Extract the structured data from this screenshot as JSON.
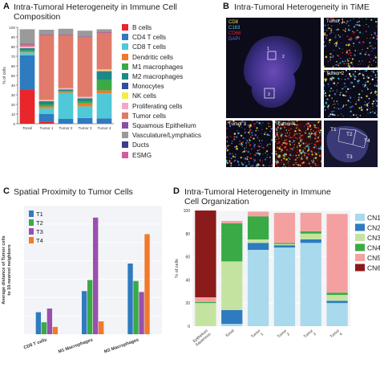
{
  "panels": {
    "a": {
      "letter": "A",
      "title_line1": "Intra-Tumoral Heterogeneity in Immune Cell",
      "title_line2": "Composition"
    },
    "b": {
      "letter": "B",
      "title": "Intra-Tumoral Heterogeneity in TiME"
    },
    "c": {
      "letter": "C",
      "title": "Spatial Proximity to Tumor Cells"
    },
    "d": {
      "letter": "D",
      "title_line1": "Intra-Tumoral Heterogeneity in Immune",
      "title_line2": "Cell Organization"
    }
  },
  "colors": {
    "B cells": "#e8262b",
    "CD4 T cells": "#2f7bbf",
    "CD8 T cells": "#4fc8d8",
    "Dendritic cells": "#f07a2c",
    "M1 macrophages": "#3aaa45",
    "M2 macrophages": "#1a8a86",
    "Monocytes": "#2f4e9e",
    "NK cells": "#f3ec4a",
    "Proliferating cells": "#f5a6c9",
    "Tumor cells": "#e07a6a",
    "Squamous Epithelium": "#8a4ea3",
    "Vasculature/Lymphatics": "#9a9a9a",
    "Ducts": "#3d3d8f",
    "ESMG": "#d45ba0",
    "T1": "#2f7bbf",
    "T2": "#3aaa45",
    "T3": "#9b4fb0",
    "T4": "#f07a2c",
    "CN1": "#a9d9ec",
    "CN2": "#2f7bbf",
    "CN3": "#c4e3a0",
    "CN4": "#3aaa45",
    "CN5": "#f5a0a0",
    "CN6": "#8b1a1a"
  },
  "panel_b": {
    "main_legend": [
      {
        "label": "CD8",
        "color": "#f3e04a"
      },
      {
        "label": "C163",
        "color": "#49c6e0"
      },
      {
        "label": "CD68",
        "color": "#e8262b"
      },
      {
        "label": "DAPI",
        "color": "#5a6fd8"
      }
    ],
    "insets": [
      "Tumor 1",
      "Tumor 2",
      "Tumor 3",
      "Tumor 4"
    ],
    "tumor_map_labels": [
      "T1",
      "T2",
      "T3",
      "T4"
    ],
    "region_numbers": [
      "1",
      "2",
      "3"
    ]
  },
  "chart_data": [
    {
      "id": "a",
      "type": "bar",
      "stacked": true,
      "title": "Intra-Tumoral Heterogeneity in Immune Cell Composition",
      "ylabel": "% of cells",
      "ylim": [
        0,
        100
      ],
      "yticks": [
        0,
        10,
        20,
        30,
        40,
        50,
        60,
        70,
        80,
        90,
        100
      ],
      "categories": [
        "Tonsil",
        "Tumor 1",
        "Tumor 2",
        "Tumor 3",
        "Tumor 4"
      ],
      "legend_placement": "right",
      "series": [
        {
          "name": "B cells",
          "values": [
            35,
            2,
            0,
            0,
            0.5
          ]
        },
        {
          "name": "CD4 T cells",
          "values": [
            36,
            8,
            5,
            6,
            5
          ]
        },
        {
          "name": "CD8 T cells",
          "values": [
            3,
            6,
            27,
            12,
            26
          ]
        },
        {
          "name": "Dendritic cells",
          "values": [
            1,
            2,
            1,
            3,
            3
          ]
        },
        {
          "name": "M1 macrophages",
          "values": [
            1,
            2,
            1,
            2,
            11
          ]
        },
        {
          "name": "M2 macrophages",
          "values": [
            2,
            3,
            1,
            3,
            8
          ]
        },
        {
          "name": "Monocytes",
          "values": [
            0.5,
            0.5,
            0.5,
            0.5,
            1
          ]
        },
        {
          "name": "NK cells",
          "values": [
            0.5,
            0.5,
            0.5,
            0.5,
            1
          ]
        },
        {
          "name": "Proliferating cells",
          "values": [
            1,
            1,
            1,
            1,
            1
          ]
        },
        {
          "name": "Tumor cells",
          "values": [
            2,
            67,
            55,
            62,
            38
          ]
        },
        {
          "name": "Squamous Epithelium",
          "values": [
            1,
            0.5,
            0.5,
            0.5,
            0.5
          ]
        },
        {
          "name": "Vasculature/Lymphatics",
          "values": [
            15,
            5,
            6,
            6,
            3
          ]
        },
        {
          "name": "Ducts",
          "values": [
            0,
            0,
            0,
            0,
            0
          ]
        },
        {
          "name": "ESMG",
          "values": [
            0,
            0,
            0,
            0,
            0
          ]
        }
      ]
    },
    {
      "id": "c",
      "type": "bar",
      "title": "Spatial Proximity to Tumor Cells",
      "ylabel_line1": "Average distance of Tumor cells",
      "ylabel_line2": "to 10-nearest neighbors",
      "ylim": [
        0,
        700
      ],
      "categories": [
        "CD8 T cells",
        "M1 Macrophages",
        "M2 Macrophages"
      ],
      "legend_placement": "top-left",
      "series": [
        {
          "name": "T1",
          "values": [
            120,
            235,
            385
          ]
        },
        {
          "name": "T2",
          "values": [
            65,
            295,
            290
          ]
        },
        {
          "name": "T3",
          "values": [
            140,
            635,
            230
          ]
        },
        {
          "name": "T4",
          "values": [
            40,
            70,
            545
          ]
        }
      ]
    },
    {
      "id": "d",
      "type": "bar",
      "stacked": true,
      "title": "Intra-Tumoral Heterogeneity in Immune Cell Organization",
      "ylabel": "% of cells",
      "ylim": [
        0,
        100
      ],
      "yticks": [
        0,
        20,
        40,
        60,
        80,
        100
      ],
      "categories": [
        "Epithelium Squamous",
        "Tonsil",
        "Tumor 1",
        "Tumor 2",
        "Tumor 3",
        "Tumor 4"
      ],
      "legend_placement": "right",
      "series": [
        {
          "name": "CN1",
          "values": [
            0,
            2,
            66,
            68,
            72,
            20
          ]
        },
        {
          "name": "CN2",
          "values": [
            0,
            12,
            6,
            2,
            3,
            2
          ]
        },
        {
          "name": "CN3",
          "values": [
            20,
            42,
            3,
            1,
            5,
            5
          ]
        },
        {
          "name": "CN4",
          "values": [
            1,
            33,
            20,
            1,
            2,
            2
          ]
        },
        {
          "name": "CN5",
          "values": [
            4,
            2,
            4,
            26,
            16,
            68
          ]
        },
        {
          "name": "CN6",
          "values": [
            75,
            0,
            0,
            0,
            0,
            0
          ]
        }
      ]
    }
  ]
}
